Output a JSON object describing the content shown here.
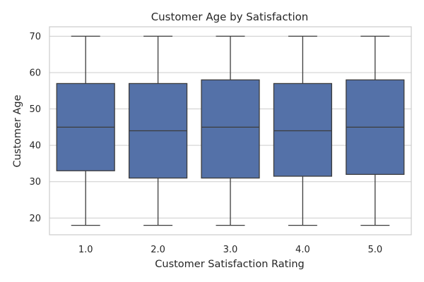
{
  "chart_data": {
    "type": "box",
    "title": "Customer Age by Satisfaction",
    "xlabel": "Customer Satisfaction Rating",
    "ylabel": "Customer Age",
    "ylim": [
      15.4,
      72.6
    ],
    "yticks": [
      20,
      30,
      40,
      50,
      60,
      70
    ],
    "grid": true,
    "box_color": "#5471a8",
    "line_color": "#3c3c3c",
    "categories": [
      "1.0",
      "2.0",
      "3.0",
      "4.0",
      "5.0"
    ],
    "boxes": [
      {
        "category": "1.0",
        "min": 18,
        "q1": 33,
        "median": 45,
        "q3": 57,
        "max": 70
      },
      {
        "category": "2.0",
        "min": 18,
        "q1": 31,
        "median": 44,
        "q3": 57,
        "max": 70
      },
      {
        "category": "3.0",
        "min": 18,
        "q1": 31,
        "median": 45,
        "q3": 58,
        "max": 70
      },
      {
        "category": "4.0",
        "min": 18,
        "q1": 31.5,
        "median": 44,
        "q3": 57,
        "max": 70
      },
      {
        "category": "5.0",
        "min": 18,
        "q1": 32,
        "median": 45,
        "q3": 58,
        "max": 70
      }
    ]
  }
}
